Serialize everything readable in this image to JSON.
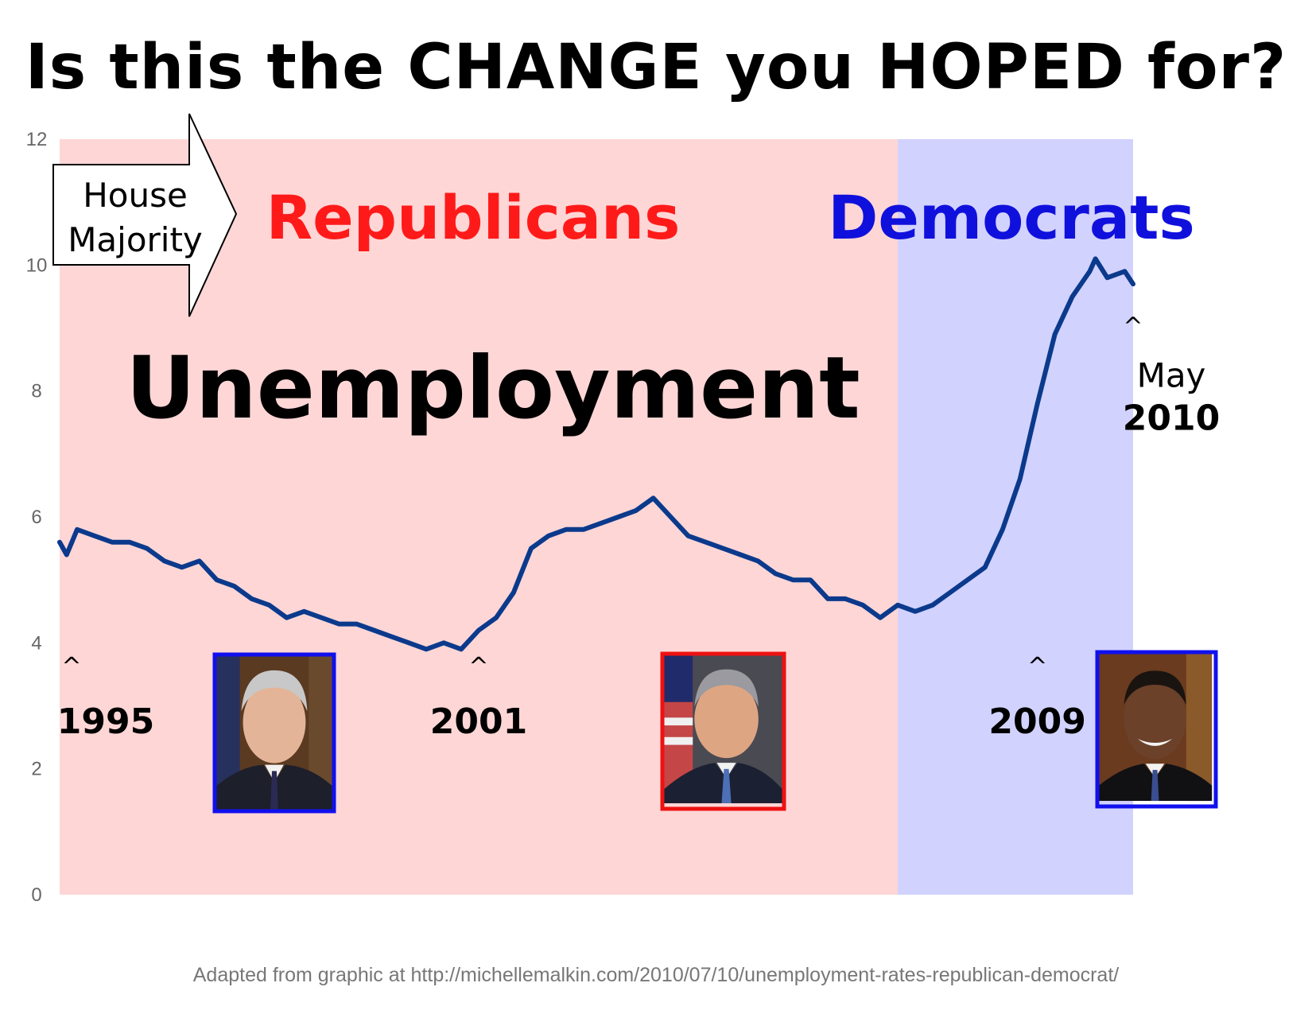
{
  "headline": "Is this the CHANGE you HOPED for?",
  "source_note": "Adapted from graphic at http://michellemalkin.com/2010/07/10/unemployment-rates-republican-democrat/",
  "portraits": [
    {
      "id": "clinton",
      "frame_color": "#1010ee"
    },
    {
      "id": "bush",
      "frame_color": "#ee1111"
    },
    {
      "id": "obama",
      "frame_color": "#1010ee"
    }
  ],
  "chart_data": {
    "type": "line",
    "title": "Unemployment",
    "ylim": [
      0,
      12
    ],
    "yticks": [
      "0",
      "2",
      "4",
      "6",
      "8",
      "10",
      "12"
    ],
    "grid": false,
    "x_range": [
      1995.0,
      2010.37
    ],
    "regions": [
      {
        "label": "Republicans",
        "x0": 1995.0,
        "x1": 2007.0,
        "color": "#ffd6d6",
        "label_color": "#ff1a1a"
      },
      {
        "label": "Democrats",
        "x0": 2007.0,
        "x1": 2010.37,
        "color": "#d2d2ff",
        "label_color": "#1010dd"
      }
    ],
    "arrow_label": "House Majority",
    "line_color": "#0b3a8c",
    "series": [
      {
        "x": [
          1995.0,
          1995.1,
          1995.25,
          1995.5,
          1995.75,
          1996.0,
          1996.25,
          1996.5,
          1996.75,
          1997.0,
          1997.25,
          1997.5,
          1997.75,
          1998.0,
          1998.25,
          1998.5,
          1998.75,
          1999.0,
          1999.25,
          1999.5,
          1999.75,
          2000.0,
          2000.25,
          2000.5,
          2000.75,
          2001.0,
          2001.25,
          2001.5,
          2001.75,
          2002.0,
          2002.25,
          2002.5,
          2002.75,
          2003.0,
          2003.25,
          2003.5,
          2003.75,
          2004.0,
          2004.25,
          2004.5,
          2004.75,
          2005.0,
          2005.25,
          2005.5,
          2005.75,
          2006.0,
          2006.25,
          2006.5,
          2006.75,
          2007.0,
          2007.25,
          2007.5,
          2007.75,
          2008.0,
          2008.25,
          2008.5,
          2008.75,
          2009.0,
          2009.25,
          2009.5,
          2009.75,
          2009.83,
          2010.0,
          2010.25,
          2010.37
        ],
        "y": [
          5.6,
          5.4,
          5.8,
          5.7,
          5.6,
          5.6,
          5.5,
          5.3,
          5.2,
          5.3,
          5.0,
          4.9,
          4.7,
          4.6,
          4.4,
          4.5,
          4.4,
          4.3,
          4.3,
          4.2,
          4.1,
          4.0,
          3.9,
          4.0,
          3.9,
          4.2,
          4.4,
          4.8,
          5.5,
          5.7,
          5.8,
          5.8,
          5.9,
          6.0,
          6.1,
          6.3,
          6.0,
          5.7,
          5.6,
          5.5,
          5.4,
          5.3,
          5.1,
          5.0,
          5.0,
          4.7,
          4.7,
          4.6,
          4.4,
          4.6,
          4.5,
          4.6,
          4.8,
          5.0,
          5.2,
          5.8,
          6.6,
          7.8,
          8.9,
          9.5,
          9.9,
          10.1,
          9.8,
          9.9,
          9.7
        ]
      }
    ],
    "annotations": [
      {
        "caret": "^",
        "line1": "",
        "line2": "1995",
        "x": 1995.0,
        "y": 3.7
      },
      {
        "caret": "^",
        "line1": "",
        "line2": "2001",
        "x": 2001.0,
        "y": 3.7
      },
      {
        "caret": "^",
        "line1": "",
        "line2": "2009",
        "x": 2009.0,
        "y": 3.7
      },
      {
        "caret": "^",
        "line1": "May",
        "line2": "2010",
        "x": 2010.37,
        "y": 9.1
      }
    ]
  }
}
